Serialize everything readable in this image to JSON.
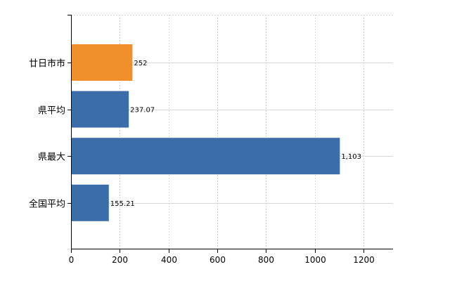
{
  "chart_data": {
    "type": "bar",
    "orientation": "horizontal",
    "categories": [
      "廿日市市",
      "県平均",
      "県最大",
      "全国平均"
    ],
    "values": [
      252,
      237.07,
      1103,
      155.21
    ],
    "value_labels": [
      "252",
      "237.07",
      "1,103",
      "155.21"
    ],
    "bar_colors": [
      "#f0902c",
      "#3b6ea8",
      "#3b6ea8",
      "#3b6ea8"
    ],
    "xlim": [
      0,
      1320
    ],
    "x_ticks": [
      0,
      200,
      400,
      600,
      800,
      1000,
      1200
    ],
    "x_tick_labels": [
      "0",
      "200",
      "400",
      "600",
      "800",
      "1000",
      "1200"
    ],
    "grid": true,
    "title": "",
    "xlabel": "",
    "ylabel": ""
  },
  "colors": {
    "highlight": "#f0902c",
    "default_bar": "#3b6ea8",
    "grid": "#d9d9d9",
    "axis": "#000000"
  }
}
